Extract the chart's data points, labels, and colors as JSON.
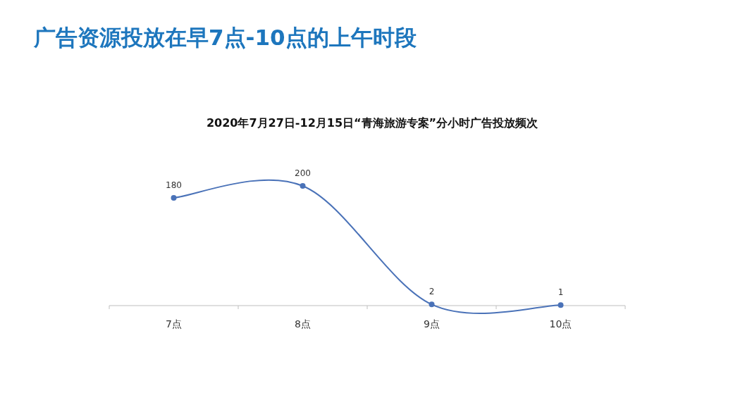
{
  "chart_data": {
    "type": "line",
    "title": "广告资源投放在早7点-10点的上午时段",
    "subtitle": "2020年7月27日-12月15日“青海旅游专案”分小时广告投放频次",
    "categories": [
      "7点",
      "8点",
      "9点",
      "10点"
    ],
    "series": [
      {
        "color": "#4a72b8",
        "values": [
          180,
          200,
          2,
          1
        ]
      }
    ],
    "data_labels": true,
    "marker": "circle"
  }
}
